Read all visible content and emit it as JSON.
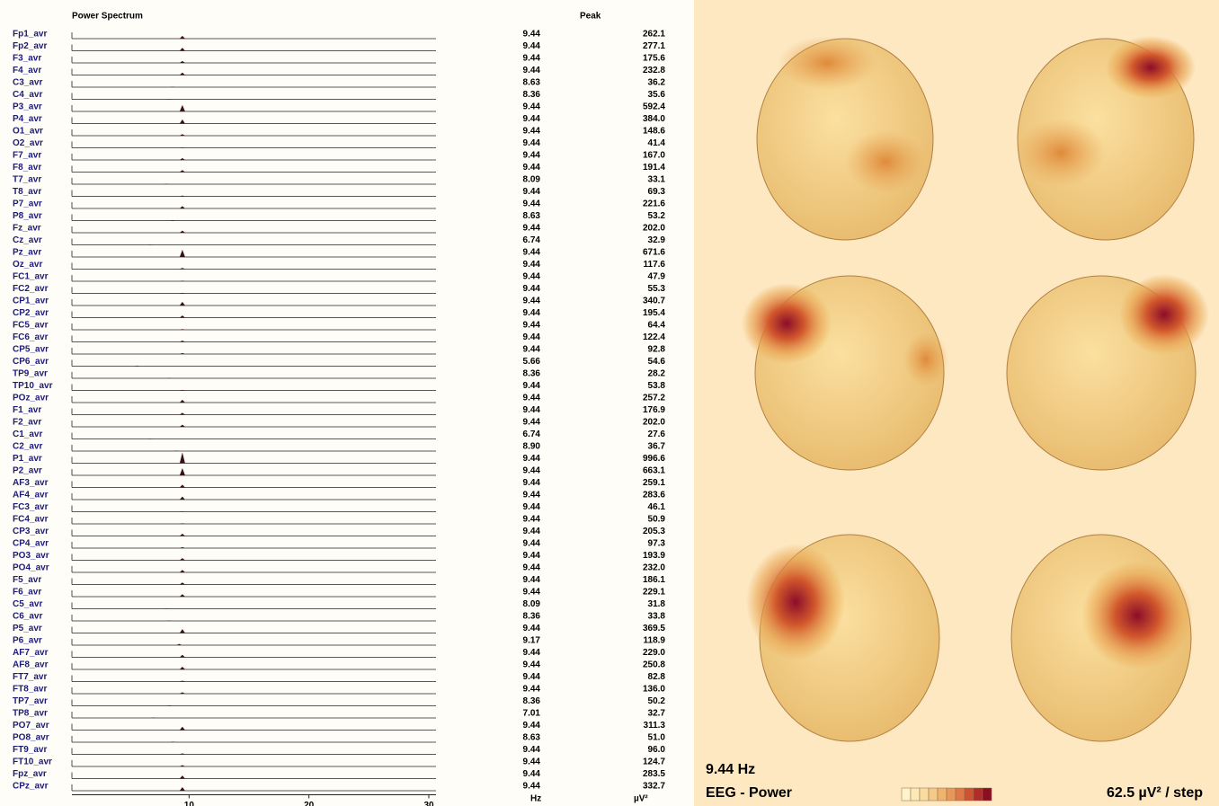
{
  "spectrum": {
    "title": "Power Spectrum",
    "peak_header": "Peak",
    "x_unit": "Hz",
    "power_unit": "µV²",
    "xlim": [
      0,
      30.6
    ],
    "xticks": [
      10,
      20,
      30
    ]
  },
  "channels": [
    {
      "name": "Fp1_avr",
      "peak_hz": 9.44,
      "peak_power": 262.1
    },
    {
      "name": "Fp2_avr",
      "peak_hz": 9.44,
      "peak_power": 277.1
    },
    {
      "name": "F3_avr",
      "peak_hz": 9.44,
      "peak_power": 175.6
    },
    {
      "name": "F4_avr",
      "peak_hz": 9.44,
      "peak_power": 232.8
    },
    {
      "name": "C3_avr",
      "peak_hz": 8.63,
      "peak_power": 36.2
    },
    {
      "name": "C4_avr",
      "peak_hz": 8.36,
      "peak_power": 35.6
    },
    {
      "name": "P3_avr",
      "peak_hz": 9.44,
      "peak_power": 592.4
    },
    {
      "name": "P4_avr",
      "peak_hz": 9.44,
      "peak_power": {
        "value": 384,
        "label": "384.0"
      }
    },
    {
      "name": "O1_avr",
      "peak_hz": 9.44,
      "peak_power": 148.6
    },
    {
      "name": "O2_avr",
      "peak_hz": 9.44,
      "peak_power": 41.4
    },
    {
      "name": "F7_avr",
      "peak_hz": 9.44,
      "peak_power": {
        "value": 167,
        "label": "167.0"
      }
    },
    {
      "name": "F8_avr",
      "peak_hz": 9.44,
      "peak_power": 191.4
    },
    {
      "name": "T7_avr",
      "peak_hz": 8.09,
      "peak_power": 33.1
    },
    {
      "name": "T8_avr",
      "peak_hz": 9.44,
      "peak_power": 69.3
    },
    {
      "name": "P7_avr",
      "peak_hz": 9.44,
      "peak_power": 221.6
    },
    {
      "name": "P8_avr",
      "peak_hz": 8.63,
      "peak_power": 53.2
    },
    {
      "name": "Fz_avr",
      "peak_hz": 9.44,
      "peak_power": {
        "value": 202,
        "label": "202.0"
      }
    },
    {
      "name": "Cz_avr",
      "peak_hz": 6.74,
      "peak_power": 32.9
    },
    {
      "name": "Pz_avr",
      "peak_hz": 9.44,
      "peak_power": 671.6
    },
    {
      "name": "Oz_avr",
      "peak_hz": 9.44,
      "peak_power": 117.6
    },
    {
      "name": "FC1_avr",
      "peak_hz": 9.44,
      "peak_power": 47.9
    },
    {
      "name": "FC2_avr",
      "peak_hz": 9.44,
      "peak_power": 55.3
    },
    {
      "name": "CP1_avr",
      "peak_hz": 9.44,
      "peak_power": 340.7
    },
    {
      "name": "CP2_avr",
      "peak_hz": 9.44,
      "peak_power": 195.4
    },
    {
      "name": "FC5_avr",
      "peak_hz": 9.44,
      "peak_power": 64.4
    },
    {
      "name": "FC6_avr",
      "peak_hz": 9.44,
      "peak_power": 122.4
    },
    {
      "name": "CP5_avr",
      "peak_hz": 9.44,
      "peak_power": 92.8
    },
    {
      "name": "CP6_avr",
      "peak_hz": 5.66,
      "peak_power": 54.6
    },
    {
      "name": "TP9_avr",
      "peak_hz": 8.36,
      "peak_power": 28.2
    },
    {
      "name": "TP10_avr",
      "peak_hz": 9.44,
      "peak_power": 53.8
    },
    {
      "name": "POz_avr",
      "peak_hz": 9.44,
      "peak_power": 257.2
    },
    {
      "name": "F1_avr",
      "peak_hz": 9.44,
      "peak_power": 176.9
    },
    {
      "name": "F2_avr",
      "peak_hz": 9.44,
      "peak_power": {
        "value": 202,
        "label": "202.0"
      }
    },
    {
      "name": "C1_avr",
      "peak_hz": 6.74,
      "peak_power": 27.6
    },
    {
      "name": "C2_avr",
      "peak_hz": {
        "value": 8.9,
        "label": "8.90"
      },
      "peak_power": 36.7
    },
    {
      "name": "P1_avr",
      "peak_hz": 9.44,
      "peak_power": 996.6
    },
    {
      "name": "P2_avr",
      "peak_hz": 9.44,
      "peak_power": 663.1
    },
    {
      "name": "AF3_avr",
      "peak_hz": 9.44,
      "peak_power": 259.1
    },
    {
      "name": "AF4_avr",
      "peak_hz": 9.44,
      "peak_power": 283.6
    },
    {
      "name": "FC3_avr",
      "peak_hz": 9.44,
      "peak_power": 46.1
    },
    {
      "name": "FC4_avr",
      "peak_hz": 9.44,
      "peak_power": 50.9
    },
    {
      "name": "CP3_avr",
      "peak_hz": 9.44,
      "peak_power": 205.3
    },
    {
      "name": "CP4_avr",
      "peak_hz": 9.44,
      "peak_power": 97.3
    },
    {
      "name": "PO3_avr",
      "peak_hz": 9.44,
      "peak_power": 193.9
    },
    {
      "name": "PO4_avr",
      "peak_hz": 9.44,
      "peak_power": {
        "value": 232,
        "label": "232.0"
      }
    },
    {
      "name": "F5_avr",
      "peak_hz": 9.44,
      "peak_power": 186.1
    },
    {
      "name": "F6_avr",
      "peak_hz": 9.44,
      "peak_power": 229.1
    },
    {
      "name": "C5_avr",
      "peak_hz": 8.09,
      "peak_power": 31.8
    },
    {
      "name": "C6_avr",
      "peak_hz": 8.36,
      "peak_power": 33.8
    },
    {
      "name": "P5_avr",
      "peak_hz": 9.44,
      "peak_power": 369.5
    },
    {
      "name": "P6_avr",
      "peak_hz": 9.17,
      "peak_power": 118.9
    },
    {
      "name": "AF7_avr",
      "peak_hz": 9.44,
      "peak_power": {
        "value": 229,
        "label": "229.0"
      }
    },
    {
      "name": "AF8_avr",
      "peak_hz": 9.44,
      "peak_power": 250.8
    },
    {
      "name": "FT7_avr",
      "peak_hz": 9.44,
      "peak_power": 82.8
    },
    {
      "name": "FT8_avr",
      "peak_hz": 9.44,
      "peak_power": {
        "value": 136,
        "label": "136.0"
      }
    },
    {
      "name": "TP7_avr",
      "peak_hz": 8.36,
      "peak_power": 50.2
    },
    {
      "name": "TP8_avr",
      "peak_hz": 7.01,
      "peak_power": 32.7
    },
    {
      "name": "PO7_avr",
      "peak_hz": 9.44,
      "peak_power": 311.3
    },
    {
      "name": "PO8_avr",
      "peak_hz": 8.63,
      "peak_power": {
        "value": 51,
        "label": "51.0"
      }
    },
    {
      "name": "FT9_avr",
      "peak_hz": 9.44,
      "peak_power": {
        "value": 96,
        "label": "96.0"
      }
    },
    {
      "name": "FT10_avr",
      "peak_hz": 9.44,
      "peak_power": 124.7
    },
    {
      "name": "Fpz_avr",
      "peak_hz": 9.44,
      "peak_power": 283.5
    },
    {
      "name": "CPz_avr",
      "peak_hz": 9.44,
      "peak_power": 332.7
    }
  ],
  "map": {
    "frequency": "9.44 Hz",
    "measure": "EEG - Power",
    "scale": "62.5 µV² / step"
  }
}
